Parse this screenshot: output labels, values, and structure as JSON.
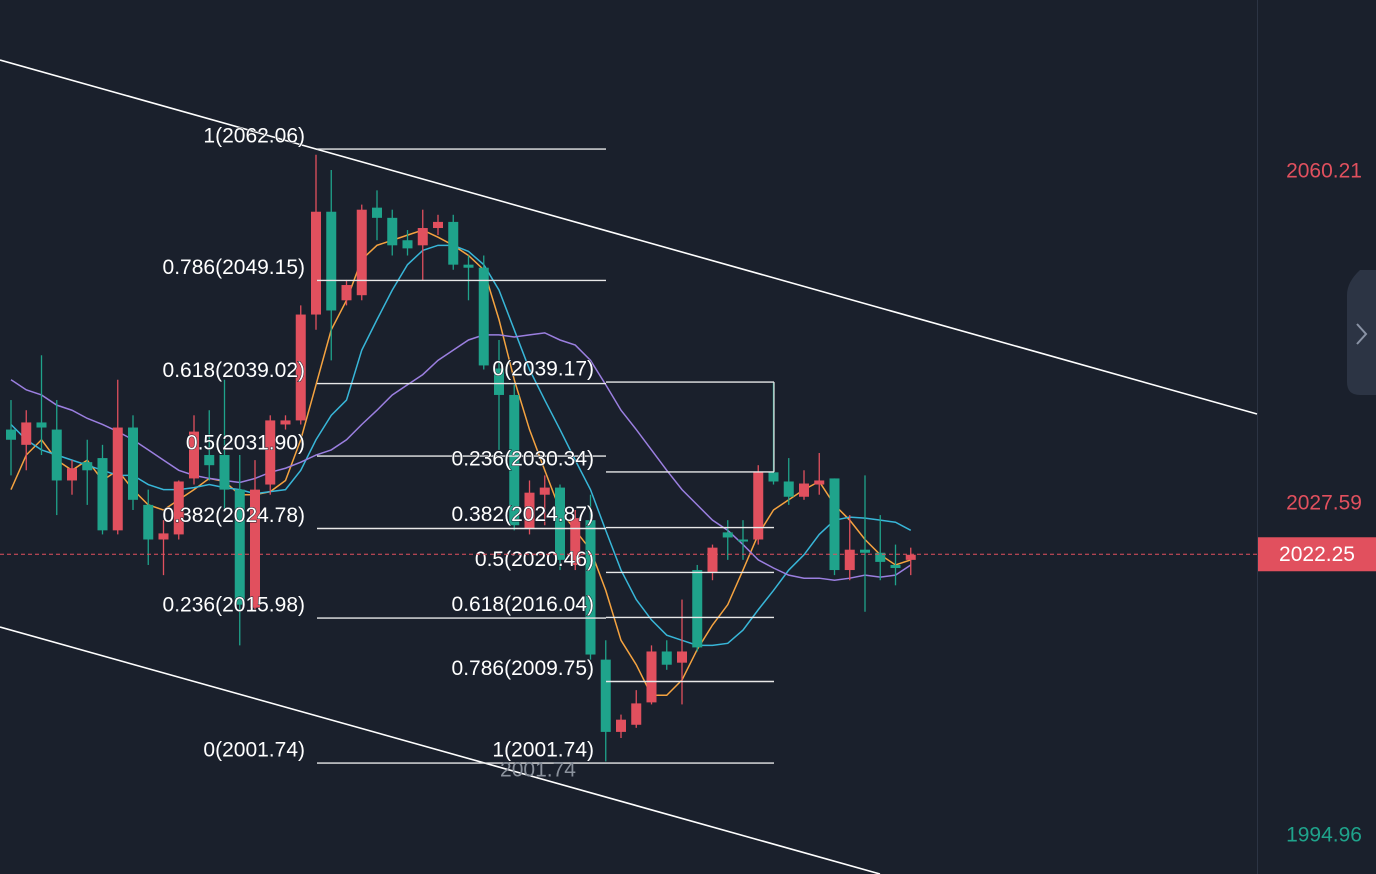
{
  "chart_data": {
    "type": "candlestick",
    "ylim": [
      1990.84,
      2076.7
    ],
    "yticks": [
      2060.21,
      2027.59,
      1994.96
    ],
    "last_price": 2022.25,
    "up_color": "#e1505e",
    "down_color": "#1fa38b",
    "candles": {
      "open": [
        2034.5,
        2033.0,
        2035.2,
        2034.5,
        2029.5,
        2031.3,
        2031.7,
        2024.6,
        2034.7,
        2027.1,
        2023.7,
        2024.2,
        2029.7,
        2032.0,
        2032.0,
        2028.6,
        2017.0,
        2029.1,
        2035.0,
        2035.4,
        2045.8,
        2055.9,
        2047.2,
        2047.7,
        2056.3,
        2055.3,
        2053.1,
        2052.6,
        2054.3,
        2054.9,
        2050.7,
        2050.4,
        2040.5,
        2037.9,
        2024.8,
        2028.1,
        2028.8,
        2021.2,
        2025.6,
        2011.9,
        2004.8,
        2005.5,
        2007.7,
        2012.7,
        2011.6,
        2020.7,
        2020.5,
        2024.4,
        2023.7,
        2023.7,
        2030.3,
        2029.4,
        2027.9,
        2029.1,
        2029.7,
        2020.7,
        2022.7,
        2022.4,
        2021.2,
        2021.7
      ],
      "high": [
        2037.4,
        2036.4,
        2041.8,
        2037.4,
        2031.5,
        2033.5,
        2033.0,
        2039.4,
        2035.9,
        2028.6,
        2025.6,
        2029.5,
        2035.9,
        2036.4,
        2039.4,
        2032.0,
        2031.5,
        2035.9,
        2035.9,
        2046.7,
        2061.5,
        2060.0,
        2049.2,
        2056.6,
        2058.0,
        2056.1,
        2054.1,
        2056.1,
        2055.6,
        2055.6,
        2051.6,
        2051.6,
        2043.3,
        2038.9,
        2029.5,
        2030.0,
        2029.1,
        2026.6,
        2028.1,
        2013.8,
        2006.5,
        2008.9,
        2013.3,
        2013.8,
        2017.8,
        2021.2,
        2023.2,
        2025.6,
        2025.6,
        2031.0,
        2039.1,
        2031.7,
        2030.5,
        2032.2,
        2029.7,
        2026.1,
        2030.0,
        2026.1,
        2023.2,
        2022.9
      ],
      "low": [
        2030.0,
        2030.5,
        2032.0,
        2026.1,
        2028.1,
        2027.1,
        2024.2,
        2024.2,
        2026.6,
        2021.2,
        2020.2,
        2023.7,
        2029.1,
        2029.5,
        2026.6,
        2013.3,
        2016.8,
        2028.1,
        2034.5,
        2035.0,
        2044.3,
        2041.3,
        2046.7,
        2047.2,
        2053.1,
        2051.6,
        2051.6,
        2049.2,
        2053.6,
        2050.2,
        2047.2,
        2040.4,
        2032.5,
        2024.6,
        2024.2,
        2025.1,
        2020.7,
        2020.7,
        2011.9,
        2001.9,
        2004.2,
        2005.2,
        2007.5,
        2010.9,
        2007.5,
        2012.7,
        2019.7,
        2021.7,
        2021.7,
        2023.2,
        2029.1,
        2027.1,
        2027.6,
        2028.1,
        2020.2,
        2019.7,
        2016.6,
        2019.7,
        2019.2,
        2020.2
      ],
      "close": [
        2033.5,
        2035.2,
        2034.7,
        2029.5,
        2030.7,
        2030.5,
        2024.6,
        2034.7,
        2027.6,
        2023.7,
        2024.3,
        2029.4,
        2034.3,
        2031.0,
        2028.6,
        2017.3,
        2028.6,
        2035.4,
        2035.4,
        2045.8,
        2055.9,
        2046.2,
        2048.7,
        2056.1,
        2055.3,
        2052.6,
        2052.3,
        2054.3,
        2054.9,
        2050.7,
        2050.4,
        2040.8,
        2037.9,
        2025.1,
        2028.3,
        2028.8,
        2021.7,
        2025.8,
        2012.4,
        2004.8,
        2006.0,
        2007.6,
        2012.7,
        2011.4,
        2012.7,
        2013.1,
        2022.9,
        2023.9,
        2023.5,
        2030.3,
        2029.4,
        2027.9,
        2029.2,
        2029.5,
        2020.7,
        2022.7,
        2022.4,
        2021.5,
        2020.9,
        2022.2
      ]
    },
    "series": [
      {
        "color": "#f5a340",
        "values": [
          2028.6,
          2032.0,
          2033.5,
          2031.5,
          2030.5,
          2031.5,
          2029.5,
          2030.5,
          2028.6,
          2027.1,
          2026.6,
          2027.6,
          2028.6,
          2029.7,
          2029.4,
          2028.1,
          2028.1,
          2028.4,
          2029.5,
          2033.5,
          2038.9,
          2044.3,
          2047.2,
          2051.2,
          2052.6,
          2053.1,
          2053.6,
          2054.1,
          2053.4,
          2052.6,
          2051.6,
          2050.2,
          2045.3,
          2039.4,
          2034.5,
          2030.5,
          2026.6,
          2024.6,
          2022.7,
          2018.7,
          2013.8,
          2011.4,
          2008.4,
          2008.4,
          2009.9,
          2012.9,
          2015.3,
          2017.3,
          2020.7,
          2024.2,
          2026.6,
          2027.6,
          2028.6,
          2029.4,
          2027.1,
          2025.6,
          2023.7,
          2022.2,
          2021.2,
          2021.7
        ]
      },
      {
        "color": "#38b6d8",
        "values": [
          2035.0,
          2033.5,
          2032.5,
          2032.0,
          2031.5,
          2031.0,
          2030.5,
          2030.0,
          2030.0,
          2029.1,
          2028.6,
          2028.6,
          2028.8,
          2029.1,
          2028.8,
          2028.6,
          2028.2,
          2028.4,
          2028.6,
          2030.5,
          2033.5,
          2035.9,
          2037.4,
          2042.3,
          2045.3,
          2048.2,
          2050.7,
          2052.1,
          2052.6,
          2052.6,
          2052.0,
          2050.7,
          2048.2,
          2044.3,
          2040.4,
          2037.4,
          2034.5,
          2031.5,
          2028.6,
          2024.6,
          2020.7,
          2017.8,
          2015.8,
          2014.3,
          2013.8,
          2013.3,
          2013.3,
          2013.5,
          2014.8,
          2016.8,
          2018.7,
          2020.7,
          2022.2,
          2024.2,
          2025.6,
          2025.9,
          2025.8,
          2025.6,
          2025.4,
          2024.6
        ]
      },
      {
        "color": "#9b7fe0",
        "values": [
          2039.4,
          2038.4,
          2037.9,
          2036.9,
          2036.4,
          2035.6,
          2035.0,
          2034.3,
          2033.5,
          2032.5,
          2031.5,
          2030.5,
          2030.0,
          2029.7,
          2029.5,
          2029.3,
          2029.7,
          2030.3,
          2030.7,
          2031.3,
          2032.0,
          2032.5,
          2033.5,
          2035.0,
          2036.4,
          2037.9,
          2038.9,
          2039.9,
          2041.3,
          2042.3,
          2043.3,
          2043.8,
          2043.8,
          2043.6,
          2043.8,
          2044.0,
          2043.3,
          2042.8,
          2041.3,
          2038.9,
          2036.4,
          2034.5,
          2032.5,
          2030.5,
          2028.6,
          2027.1,
          2025.6,
          2024.6,
          2023.2,
          2021.7,
          2020.9,
          2020.2,
          2019.9,
          2019.9,
          2019.7,
          2019.9,
          2020.2,
          2020.0,
          2020.2,
          2021.2
        ]
      }
    ],
    "fib_levels_left": [
      {
        "value": 2062.06,
        "label": "1(2062.06)"
      },
      {
        "value": 2049.15,
        "label": "0.786(2049.15)"
      },
      {
        "value": 2039.02,
        "label": "0.618(2039.02)"
      },
      {
        "value": 2031.9,
        "label": "0.5(2031.90)"
      },
      {
        "value": 2024.78,
        "label": "0.382(2024.78)"
      },
      {
        "value": 2015.98,
        "label": "0.236(2015.98)"
      },
      {
        "value": 2001.74,
        "label": "0(2001.74)"
      }
    ],
    "fib_levels_right": [
      {
        "value": 2039.17,
        "label": "0(2039.17)"
      },
      {
        "value": 2030.34,
        "label": "0.236(2030.34)"
      },
      {
        "value": 2024.87,
        "label": "0.382(2024.87)"
      },
      {
        "value": 2020.46,
        "label": "0.5(2020.46)"
      },
      {
        "value": 2016.04,
        "label": "0.618(2016.04)"
      },
      {
        "value": 2009.75,
        "label": "0.786(2009.75)"
      },
      {
        "value": 2001.74,
        "label": "1(2001.74)"
      }
    ],
    "low_label": 2001.74
  }
}
